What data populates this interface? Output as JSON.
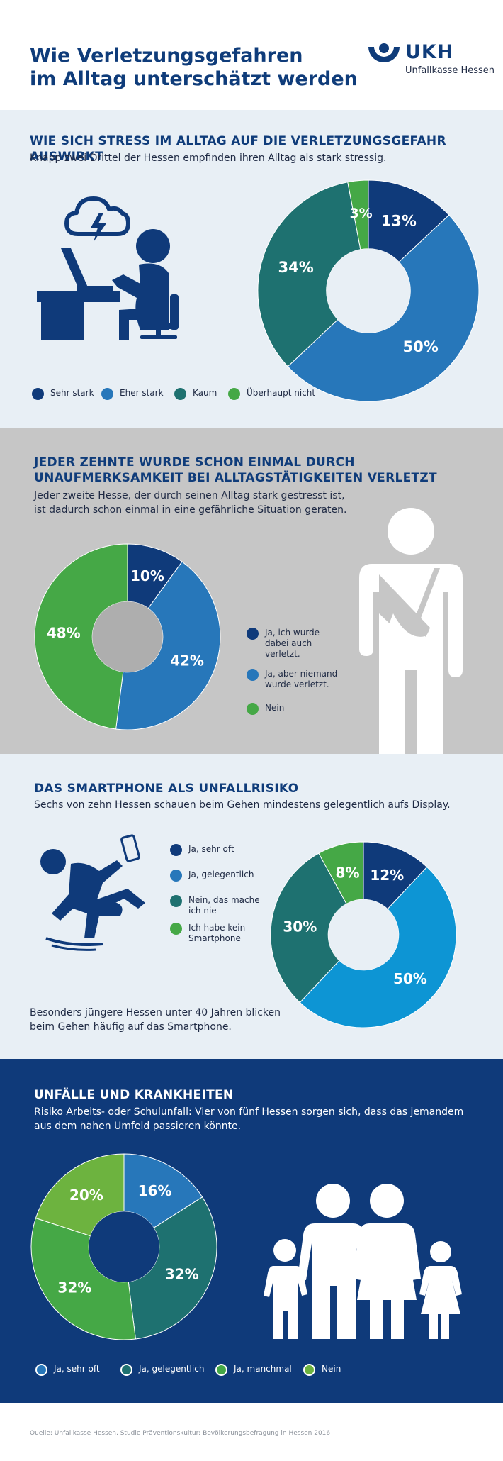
{
  "header": {
    "title_line1": "Wie Verletzungsgefahren",
    "title_line2": "im Alltag unterschätzt werden",
    "logo_text": "UKH",
    "logo_sub": "Unfallkasse Hessen"
  },
  "colors": {
    "dark_blue": "#0f3a7a",
    "mid_blue": "#2777ba",
    "teal": "#1e7170",
    "green": "#45a846",
    "light_blue": "#0d95d4"
  },
  "section1": {
    "title": "WIE SICH STRESS IM ALLTAG AUF DIE VERLETZUNGSGEFAHR AUSWIRKT",
    "subtitle": "Knapp zwei Drittel der Hessen empfinden ihren Alltag als stark stressig.",
    "icon": "stressed-person-at-desk-icon",
    "legend": [
      "Sehr stark",
      "Eher stark",
      "Kaum",
      "Überhaupt nicht"
    ]
  },
  "section2": {
    "title_line1": "JEDER ZEHNTE WURDE SCHON EINMAL DURCH",
    "title_line2": "UNAUFMERKSAMKEIT BEI ALLTAGSTÄTIGKEITEN VERLETZT",
    "subtitle_line1": "Jeder zweite Hesse, der durch seinen Alltag stark gestresst ist,",
    "subtitle_line2": "ist dadurch schon einmal in eine gefährliche Situation geraten.",
    "icon": "injured-person-with-sling-icon",
    "legend": [
      {
        "l1": "Ja, ich wurde",
        "l2": "dabei auch",
        "l3": "verletzt."
      },
      {
        "l1": "Ja, aber niemand",
        "l2": "wurde verletzt.",
        "l3": ""
      },
      {
        "l1": "Nein",
        "l2": "",
        "l3": ""
      }
    ]
  },
  "section3": {
    "title": "DAS SMARTPHONE ALS UNFALLRISIKO",
    "subtitle": "Sechs von zehn Hessen schauen beim Gehen mindestens gelegentlich aufs Display.",
    "icon": "person-tripping-with-phone-icon",
    "legend": [
      {
        "l1": "Ja, sehr oft",
        "l2": ""
      },
      {
        "l1": "Ja, gelegentlich",
        "l2": ""
      },
      {
        "l1": "Nein, das mache",
        "l2": "ich nie"
      },
      {
        "l1": "Ich habe kein",
        "l2": "Smartphone"
      }
    ],
    "note_line1": "Besonders jüngere Hessen unter 40 Jahren blicken",
    "note_line2": "beim Gehen häufig auf das Smartphone."
  },
  "section4": {
    "title": "UNFÄLLE UND KRANKHEITEN",
    "subtitle_line1": "Risiko Arbeits- oder Schulunfall: Vier von fünf Hessen sorgen sich, dass das jemandem",
    "subtitle_line2": "aus dem nahen Umfeld passieren könnte.",
    "icon": "family-icon",
    "legend": [
      "Ja, sehr oft",
      "Ja, gelegentlich",
      "Ja, manchmal",
      "Nein"
    ]
  },
  "footer": {
    "source": "Quelle: Unfallkasse Hessen, Studie Präventionskultur: Bevölkerungsbefragung in Hessen 2016"
  },
  "chart_data": [
    {
      "type": "pie",
      "categories": [
        "Sehr stark",
        "Eher stark",
        "Kaum",
        "Überhaupt nicht"
      ],
      "values": [
        13,
        50,
        34,
        3
      ],
      "labels": [
        "13%",
        "50%",
        "34%",
        "3%"
      ],
      "colors": [
        "#0f3a7a",
        "#2777ba",
        "#1e7170",
        "#45a846"
      ]
    },
    {
      "type": "pie",
      "categories": [
        "Ja, ich wurde dabei auch verletzt.",
        "Ja, aber niemand wurde verletzt.",
        "Nein"
      ],
      "values": [
        10,
        42,
        48
      ],
      "labels": [
        "10%",
        "42%",
        "48%"
      ],
      "colors": [
        "#0f3a7a",
        "#2777ba",
        "#45a846"
      ]
    },
    {
      "type": "pie",
      "categories": [
        "Ja, sehr oft",
        "Ja, gelegentlich",
        "Nein, das mache ich nie",
        "Ich habe kein Smartphone"
      ],
      "values": [
        12,
        50,
        30,
        8
      ],
      "labels": [
        "12%",
        "50%",
        "30%",
        "8%"
      ],
      "colors": [
        "#0f3a7a",
        "#0d95d4",
        "#1e7170",
        "#45a846"
      ]
    },
    {
      "type": "pie",
      "categories": [
        "Ja, sehr oft",
        "Ja, gelegentlich",
        "Ja, manchmal",
        "Nein"
      ],
      "values": [
        16,
        32,
        32,
        20
      ],
      "labels": [
        "16%",
        "32%",
        "32%",
        "20%"
      ],
      "colors": [
        "#2777ba",
        "#1e7170",
        "#45a846",
        "#6db33f"
      ]
    }
  ]
}
